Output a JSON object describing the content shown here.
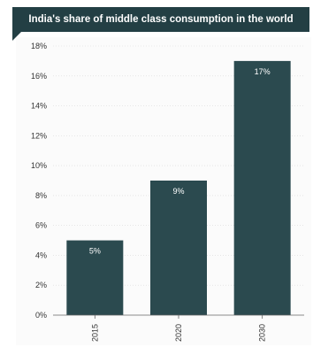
{
  "chart_data": {
    "type": "bar",
    "title": "India's share of middle class consumption in the world",
    "categories": [
      "2015",
      "2020",
      "2030"
    ],
    "values": [
      5,
      9,
      17
    ],
    "data_labels": [
      "5%",
      "9%",
      "17%"
    ],
    "y_ticks": [
      "0%",
      "2%",
      "4%",
      "6%",
      "8%",
      "10%",
      "12%",
      "14%",
      "16%",
      "18%"
    ],
    "ylim": [
      0,
      18
    ],
    "xlabel": "",
    "ylabel": "",
    "grid": true,
    "legend": "none",
    "bar_color": "#2b4a4f",
    "title_bg": "#233f44"
  }
}
